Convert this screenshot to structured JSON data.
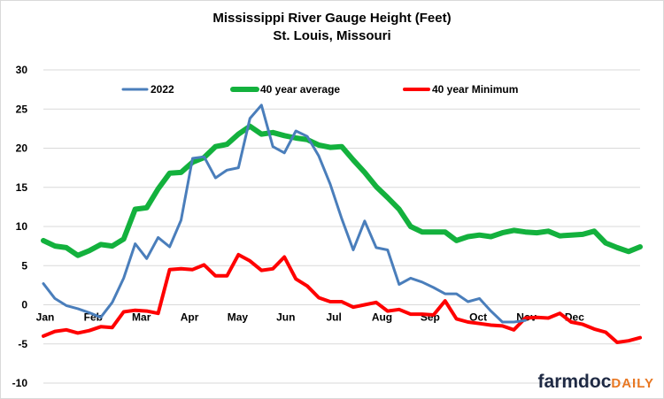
{
  "chart_data": {
    "type": "line",
    "title": "Mississippi River Gauge Height (Feet)",
    "subtitle": "St. Louis, Missouri",
    "ylim": [
      -10,
      30
    ],
    "yticks": [
      -10,
      -5,
      0,
      5,
      10,
      15,
      20,
      25,
      30
    ],
    "months": [
      "Jan",
      "Feb",
      "Mar",
      "Apr",
      "May",
      "Jun",
      "Jul",
      "Aug",
      "Sep",
      "Oct",
      "Nov",
      "Dec"
    ],
    "weeks": 53,
    "grid": "horizontal",
    "legend_placement": "top",
    "series": [
      {
        "name": "2022",
        "color": "#4a7ebb",
        "width": 3,
        "values": [
          2.7,
          0.8,
          -0.1,
          -0.5,
          -1.0,
          -1.6,
          0.3,
          3.4,
          7.8,
          5.9,
          8.6,
          7.4,
          10.8,
          18.7,
          18.9,
          16.2,
          17.2,
          17.5,
          23.8,
          25.5,
          20.2,
          19.4,
          22.2,
          21.5,
          19.0,
          15.4,
          11.0,
          7.0,
          10.7,
          7.3,
          7.0,
          2.6,
          3.4,
          2.9,
          2.2,
          1.4,
          1.4,
          0.4,
          0.8,
          -0.8,
          -2.2,
          -2.2,
          -2.0
        ]
      },
      {
        "name": "40 year average",
        "color": "#13b13d",
        "width": 6,
        "values": [
          8.2,
          7.5,
          7.3,
          6.3,
          6.9,
          7.7,
          7.5,
          8.4,
          12.2,
          12.4,
          14.8,
          16.8,
          16.9,
          18.2,
          18.8,
          20.2,
          20.5,
          21.8,
          22.8,
          21.8,
          22.0,
          21.6,
          21.3,
          21.1,
          20.4,
          20.1,
          20.2,
          18.5,
          16.9,
          15.1,
          13.7,
          12.2,
          10.0,
          9.3,
          9.3,
          9.3,
          8.2,
          8.7,
          8.9,
          8.7,
          9.2,
          9.5,
          9.3,
          9.2,
          9.4,
          8.8,
          8.9,
          9.0,
          9.4,
          7.9,
          7.3,
          6.8,
          7.4
        ]
      },
      {
        "name": "40 year Minimum",
        "color": "#ff0000",
        "width": 4,
        "values": [
          -4.0,
          -3.4,
          -3.2,
          -3.6,
          -3.3,
          -2.8,
          -2.9,
          -0.9,
          -0.7,
          -0.8,
          -1.1,
          4.5,
          4.6,
          4.5,
          5.1,
          3.7,
          3.7,
          6.4,
          5.6,
          4.4,
          4.6,
          6.1,
          3.3,
          2.4,
          0.9,
          0.4,
          0.4,
          -0.3,
          0.0,
          0.3,
          -0.8,
          -0.6,
          -1.2,
          -1.2,
          -1.3,
          0.5,
          -1.8,
          -2.2,
          -2.4,
          -2.6,
          -2.7,
          -3.2,
          -1.7,
          -1.6,
          -1.7,
          -1.1,
          -2.2,
          -2.5,
          -3.1,
          -3.5,
          -4.8,
          -4.6,
          -4.2
        ]
      }
    ]
  },
  "brand": {
    "main": "farmdoc",
    "sub": "DAILY"
  }
}
